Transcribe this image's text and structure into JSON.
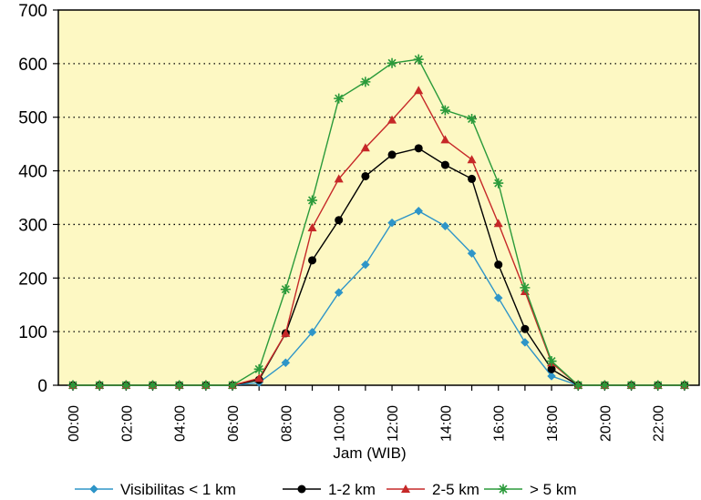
{
  "chart_data": {
    "type": "line",
    "title": "",
    "xlabel": "Jam (WIB)",
    "ylabel": "",
    "ylim": [
      0,
      700
    ],
    "yticks": [
      "0",
      "100",
      "200",
      "300",
      "400",
      "500",
      "600",
      "700"
    ],
    "categories": [
      "00:00",
      "01:00",
      "02:00",
      "03:00",
      "04:00",
      "05:00",
      "06:00",
      "07:00",
      "08:00",
      "09:00",
      "10:00",
      "11:00",
      "12:00",
      "13:00",
      "14:00",
      "15:00",
      "16:00",
      "17:00",
      "18:00",
      "19:00",
      "20:00",
      "21:00",
      "22:00",
      "23:00"
    ],
    "xtick_labels": [
      "00:00",
      "02:00",
      "04:00",
      "06:00",
      "08:00",
      "10:00",
      "12:00",
      "14:00",
      "16:00",
      "18:00",
      "20:00",
      "22:00"
    ],
    "grid": "horizontal-dotted",
    "legend_position": "bottom",
    "series": [
      {
        "name": "Visibilitas < 1 km",
        "color": "#2e95c8",
        "marker": "diamond",
        "values": [
          0,
          0,
          0,
          0,
          0,
          0,
          0,
          5,
          42,
          99,
          173,
          225,
          303,
          325,
          297,
          246,
          163,
          80,
          17,
          0,
          0,
          0,
          0,
          0
        ]
      },
      {
        "name": "1-2 km",
        "color": "#000000",
        "marker": "circle",
        "values": [
          0,
          0,
          0,
          0,
          0,
          0,
          0,
          10,
          97,
          233,
          308,
          390,
          430,
          442,
          411,
          385,
          225,
          105,
          30,
          0,
          0,
          0,
          0,
          0
        ]
      },
      {
        "name": "2-5 km",
        "color": "#c62828",
        "marker": "triangle",
        "values": [
          0,
          0,
          0,
          0,
          0,
          0,
          0,
          13,
          97,
          294,
          385,
          443,
          495,
          550,
          458,
          421,
          302,
          175,
          42,
          0,
          0,
          0,
          0,
          0
        ]
      },
      {
        "name": "> 5 km",
        "color": "#2a9a3a",
        "marker": "star",
        "values": [
          0,
          0,
          0,
          0,
          0,
          0,
          0,
          30,
          179,
          345,
          535,
          566,
          601,
          608,
          513,
          497,
          377,
          182,
          45,
          0,
          0,
          0,
          0,
          0
        ]
      }
    ]
  }
}
